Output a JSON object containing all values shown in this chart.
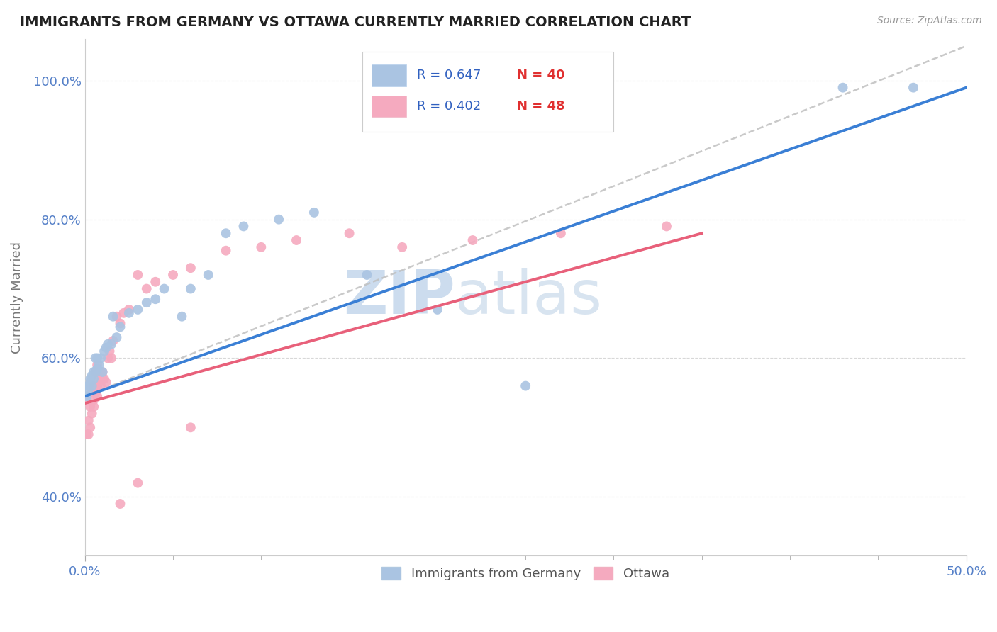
{
  "title": "IMMIGRANTS FROM GERMANY VS OTTAWA CURRENTLY MARRIED CORRELATION CHART",
  "source_text": "Source: ZipAtlas.com",
  "ylabel": "Currently Married",
  "x_min": 0.0,
  "x_max": 0.5,
  "y_min": 0.315,
  "y_max": 1.06,
  "x_ticks": [
    0.0,
    0.5
  ],
  "x_tick_labels": [
    "0.0%",
    "50.0%"
  ],
  "y_ticks": [
    0.4,
    0.6,
    0.8,
    1.0
  ],
  "y_tick_labels": [
    "40.0%",
    "60.0%",
    "80.0%",
    "100.0%"
  ],
  "legend_bottom_labels": [
    "Immigrants from Germany",
    "Ottawa"
  ],
  "blue_scatter_color": "#aac4e2",
  "pink_scatter_color": "#f5aabf",
  "blue_line_color": "#3a7fd5",
  "pink_line_color": "#e8607a",
  "gray_dashed_color": "#c0c0c0",
  "watermark_color": "#ccdcee",
  "title_color": "#222222",
  "axis_color": "#5580c8",
  "legend_r_color": "#3060c0",
  "legend_n_color": "#e03030",
  "blue_x": [
    0.001,
    0.002,
    0.002,
    0.003,
    0.003,
    0.004,
    0.004,
    0.005,
    0.005,
    0.006,
    0.006,
    0.007,
    0.007,
    0.008,
    0.009,
    0.01,
    0.011,
    0.012,
    0.013,
    0.015,
    0.016,
    0.018,
    0.02,
    0.025,
    0.03,
    0.035,
    0.04,
    0.045,
    0.055,
    0.06,
    0.07,
    0.08,
    0.09,
    0.11,
    0.13,
    0.16,
    0.2,
    0.25,
    0.43,
    0.47
  ],
  "blue_y": [
    0.545,
    0.555,
    0.56,
    0.57,
    0.565,
    0.575,
    0.56,
    0.57,
    0.58,
    0.6,
    0.58,
    0.585,
    0.6,
    0.59,
    0.6,
    0.58,
    0.61,
    0.615,
    0.62,
    0.62,
    0.66,
    0.63,
    0.645,
    0.665,
    0.67,
    0.68,
    0.685,
    0.7,
    0.66,
    0.7,
    0.72,
    0.78,
    0.79,
    0.8,
    0.81,
    0.72,
    0.67,
    0.56,
    0.99,
    0.99
  ],
  "pink_x": [
    0.001,
    0.001,
    0.002,
    0.002,
    0.003,
    0.003,
    0.004,
    0.004,
    0.005,
    0.005,
    0.005,
    0.006,
    0.006,
    0.007,
    0.007,
    0.007,
    0.008,
    0.008,
    0.009,
    0.009,
    0.01,
    0.01,
    0.011,
    0.012,
    0.013,
    0.014,
    0.015,
    0.016,
    0.018,
    0.02,
    0.022,
    0.025,
    0.03,
    0.035,
    0.04,
    0.05,
    0.06,
    0.08,
    0.1,
    0.12,
    0.15,
    0.18,
    0.22,
    0.27,
    0.33,
    0.02,
    0.03,
    0.06
  ],
  "pink_y": [
    0.54,
    0.49,
    0.49,
    0.51,
    0.53,
    0.5,
    0.55,
    0.52,
    0.53,
    0.54,
    0.56,
    0.55,
    0.58,
    0.545,
    0.56,
    0.59,
    0.57,
    0.58,
    0.56,
    0.58,
    0.57,
    0.58,
    0.57,
    0.565,
    0.6,
    0.61,
    0.6,
    0.625,
    0.66,
    0.65,
    0.665,
    0.67,
    0.72,
    0.7,
    0.71,
    0.72,
    0.73,
    0.755,
    0.76,
    0.77,
    0.78,
    0.76,
    0.77,
    0.78,
    0.79,
    0.39,
    0.42,
    0.5
  ],
  "blue_line_x0": 0.0,
  "blue_line_y0": 0.545,
  "blue_line_x1": 0.5,
  "blue_line_y1": 0.99,
  "pink_line_x0": 0.0,
  "pink_line_y0": 0.535,
  "pink_line_x1": 0.35,
  "pink_line_y1": 0.78,
  "gray_line_x0": 0.0,
  "gray_line_y0": 0.545,
  "gray_line_x1": 0.5,
  "gray_line_y1": 1.05
}
